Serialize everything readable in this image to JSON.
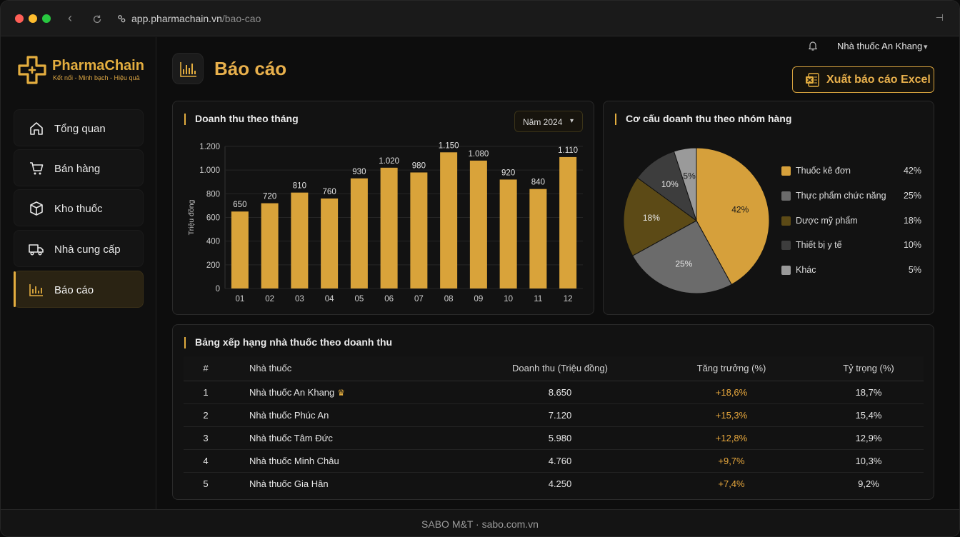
{
  "browser": {
    "url_host": "app.pharmachain.vn",
    "url_path": "/bao-cao"
  },
  "sidebar": {
    "brand": "PharmaChain",
    "tagline": "Kết nối - Minh bạch - Hiệu quả",
    "items": [
      {
        "label": "Tổng quan",
        "icon": "home-icon"
      },
      {
        "label": "Bán hàng",
        "icon": "cart-icon"
      },
      {
        "label": "Kho thuốc",
        "icon": "box-icon"
      },
      {
        "label": "Nhà cung cấp",
        "icon": "truck-icon"
      },
      {
        "label": "Báo cáo",
        "icon": "chart-icon",
        "active": true
      }
    ]
  },
  "header": {
    "title": "Báo cáo",
    "user": "Nhà thuốc An Khang",
    "export_label": "Xuất báo cáo Excel"
  },
  "revenue_card": {
    "title": "Doanh thu theo tháng",
    "year_select": "Năm 2024"
  },
  "structure_card": {
    "title": "Cơ cấu doanh thu theo nhóm hàng"
  },
  "chart_data": [
    {
      "type": "bar",
      "categories": [
        "01",
        "02",
        "03",
        "04",
        "05",
        "06",
        "07",
        "08",
        "09",
        "10",
        "11",
        "12"
      ],
      "values": [
        650,
        720,
        810,
        760,
        930,
        1020,
        980,
        1150,
        1080,
        920,
        840,
        1110
      ],
      "value_labels": [
        "650",
        "720",
        "810",
        "760",
        "930",
        "1.020",
        "980",
        "1.150",
        "1.080",
        "920",
        "840",
        "1.110"
      ],
      "ylabel": "Triệu đồng",
      "ylim": [
        0,
        1200
      ],
      "yticks": [
        0,
        200,
        400,
        600,
        800,
        1000,
        1200
      ],
      "ytick_labels": [
        "0",
        "200",
        "400",
        "600",
        "800",
        "1.000",
        "1.200"
      ],
      "grid": true,
      "color": "#d9a33a"
    },
    {
      "type": "pie",
      "slices": [
        {
          "name": "Thuốc kê đơn",
          "value": 42,
          "label": "42%",
          "color": "#d6a03b"
        },
        {
          "name": "Thực phẩm chức năng",
          "value": 25,
          "label": "25%",
          "color": "#6b6b6b"
        },
        {
          "name": "Dược mỹ phẩm",
          "value": 18,
          "label": "18%",
          "color": "#5c4a16"
        },
        {
          "name": "Thiết bị y tế",
          "value": 10,
          "label": "10%",
          "color": "#3d3d3d"
        },
        {
          "name": "Khác",
          "value": 5,
          "label": "5%",
          "color": "#9a9a9a"
        }
      ],
      "legend_position": "right"
    }
  ],
  "ranking_card": {
    "title": "Bảng xếp hạng nhà thuốc theo doanh thu",
    "columns": [
      "#",
      "Nhà thuốc",
      "Doanh thu (Triệu đồng)",
      "Tăng trưởng (%)",
      "Tỷ trọng (%)"
    ],
    "rows": [
      {
        "rank": "1",
        "name": "Nhà thuốc An Khang",
        "revenue": "8.650",
        "growth": "+18,6%",
        "share": "18,7%",
        "crown": true
      },
      {
        "rank": "2",
        "name": "Nhà thuốc Phúc An",
        "revenue": "7.120",
        "growth": "+15,3%",
        "share": "15,4%"
      },
      {
        "rank": "3",
        "name": "Nhà thuốc Tâm Đức",
        "revenue": "5.980",
        "growth": "+12,8%",
        "share": "12,9%"
      },
      {
        "rank": "4",
        "name": "Nhà thuốc Minh Châu",
        "revenue": "4.760",
        "growth": "+9,7%",
        "share": "10,3%"
      },
      {
        "rank": "5",
        "name": "Nhà thuốc Gia Hân",
        "revenue": "4.250",
        "growth": "+7,4%",
        "share": "9,2%"
      }
    ]
  },
  "footer": {
    "text": "SABO M&T · sabo.com.vn"
  }
}
